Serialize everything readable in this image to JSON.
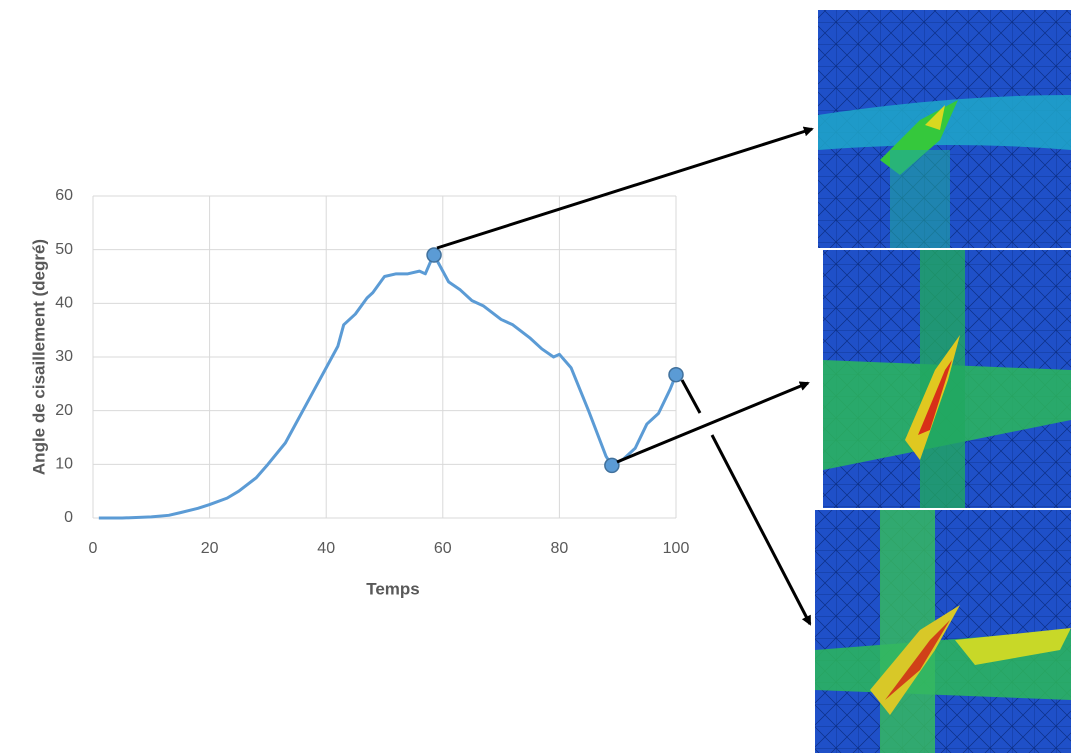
{
  "chart_data": {
    "type": "line",
    "x_label": "Temps",
    "y_label": "Angle de cisaillement (degré)",
    "xlim": [
      0,
      100
    ],
    "xticks": [
      0,
      20,
      40,
      60,
      80,
      100
    ],
    "ylim": [
      0,
      60
    ],
    "yticks": [
      0,
      10,
      20,
      30,
      40,
      50,
      60
    ],
    "grid": true,
    "series": [
      {
        "color": "#5b9bd5",
        "x": [
          1,
          5,
          10,
          13,
          15,
          18,
          20,
          23,
          25,
          28,
          30,
          33,
          35,
          38,
          40,
          42,
          43,
          45,
          47,
          48,
          50,
          52,
          54,
          56,
          57,
          58,
          58.5,
          59,
          61,
          63,
          65,
          67,
          70,
          72,
          75,
          77,
          79,
          80,
          82,
          85,
          88,
          89,
          91,
          93,
          95,
          97,
          99,
          100
        ],
        "values": [
          0,
          0,
          0.2,
          0.5,
          1,
          1.8,
          2.5,
          3.7,
          5,
          7.5,
          10,
          14,
          18,
          24,
          28,
          32,
          36,
          38,
          41,
          42,
          45,
          45.5,
          45.5,
          46,
          45.5,
          48,
          49,
          48,
          44,
          42.5,
          40.5,
          39.5,
          37,
          36,
          33.5,
          31.5,
          30,
          30.5,
          28,
          20,
          11.5,
          9.8,
          11,
          13,
          17.5,
          19.5,
          24,
          26.7
        ]
      }
    ],
    "markers": {
      "color": "#5b9bd5",
      "x": [
        58.5,
        89,
        100
      ],
      "values": [
        49,
        9.8,
        26.7
      ]
    }
  }
}
